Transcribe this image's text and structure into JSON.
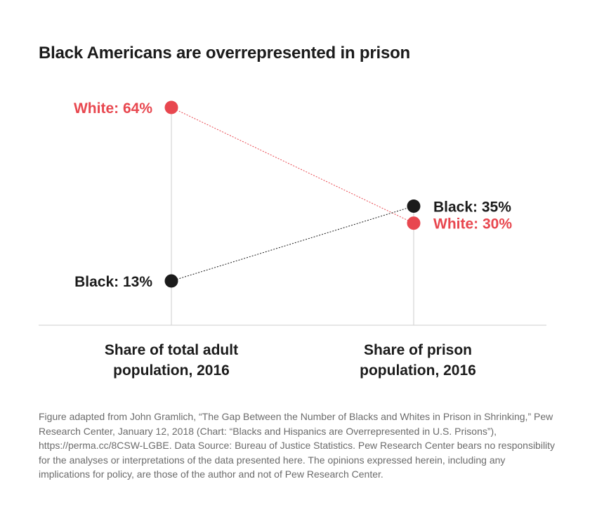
{
  "title": "Black Americans are overrepresented in prison",
  "chart_data": {
    "type": "slope",
    "categories": [
      "Share of total adult population, 2016",
      "Share of prison population, 2016"
    ],
    "category_lines": [
      [
        "Share of total adult",
        "population, 2016"
      ],
      [
        "Share of prison",
        "population, 2016"
      ]
    ],
    "series": [
      {
        "name": "White",
        "values": [
          64,
          30
        ],
        "labels": [
          "White: 64%",
          "White: 30%"
        ],
        "color": "#e8474f"
      },
      {
        "name": "Black",
        "values": [
          13,
          35
        ],
        "labels": [
          "Black: 13%",
          "Black: 35%"
        ],
        "color": "#1b1b1b"
      }
    ],
    "ylim": [
      0,
      75
    ],
    "grid": false,
    "legend": "none"
  },
  "footnote": "Figure adapted from John Gramlich, “The Gap Between the Number of Blacks and Whites in Prison in Shrinking,” Pew Research Center, January 12, 2018 (Chart: “Blacks and Hispanics are Overrepresented in U.S. Prisons”), https://perma.cc/8CSW-LGBE. Data Source: Bureau of Justice Statistics. Pew Research Center bears no responsibility for the analyses or interpretations of the data presented here. The opinions expressed herein, including any implications for policy, are those of the author and not of Pew Research Center."
}
